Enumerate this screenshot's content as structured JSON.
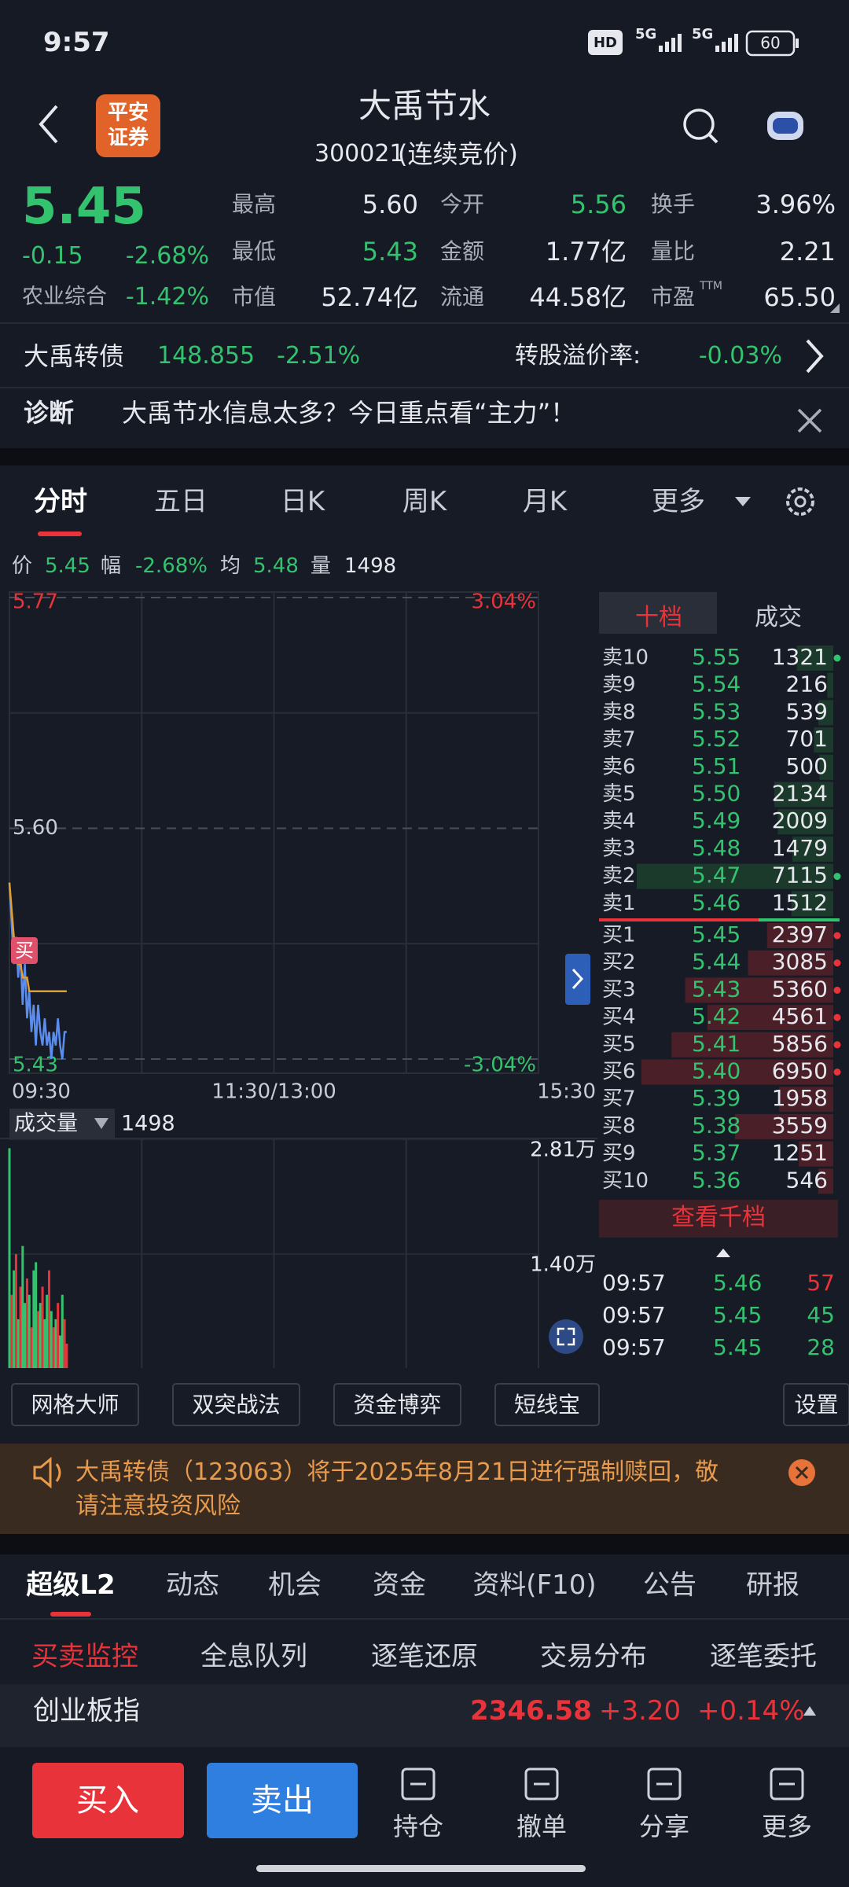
{
  "status": {
    "time": "9:57",
    "hd": "HD",
    "network": [
      "5G",
      "5G"
    ],
    "battery": "60"
  },
  "header": {
    "broker": [
      "平安",
      "证券"
    ],
    "title": "大禹节水",
    "code": "300021",
    "state": "(连续竞价)"
  },
  "quote": {
    "price": "5.45",
    "change": "-0.15",
    "change_pct": "-2.68%",
    "sector": "农业综合",
    "sector_pct": "-1.42%",
    "stats": [
      {
        "label": "最高",
        "value": "5.60"
      },
      {
        "label": "今开",
        "value": "5.56",
        "color": "#33c36f"
      },
      {
        "label": "换手",
        "value": "3.96%"
      },
      {
        "label": "最低",
        "value": "5.43",
        "color": "#33c36f"
      },
      {
        "label": "金额",
        "value": "1.77亿"
      },
      {
        "label": "量比",
        "value": "2.21"
      },
      {
        "label": "市值",
        "value": "52.74亿"
      },
      {
        "label": "流通",
        "value": "44.58亿"
      },
      {
        "label": "市盈",
        "sup": "TTM",
        "value": "65.50"
      }
    ]
  },
  "bond": {
    "name": "大禹转债",
    "price": "148.855",
    "change_pct": "-2.51%",
    "premium_label": "转股溢价率:",
    "premium": "-0.03%"
  },
  "diagnosis": {
    "label": "诊断",
    "text": "大禹节水信息太多？今日重点看“主力”！"
  },
  "period_tabs": [
    "分时",
    "五日",
    "日K",
    "周K",
    "月K",
    "更多"
  ],
  "info": [
    {
      "label": "价",
      "value": "5.45"
    },
    {
      "label": "幅",
      "value": "-2.68%"
    },
    {
      "label": "均",
      "value": "5.48"
    },
    {
      "label": "量",
      "value": "1498"
    }
  ],
  "chart_data": [
    {
      "type": "line",
      "x": [
        0,
        1,
        2,
        3,
        4,
        5,
        6,
        7,
        8,
        9,
        10,
        11,
        12,
        13,
        14,
        15,
        16,
        17,
        18,
        19,
        20,
        21,
        22,
        23,
        24,
        25,
        26
      ],
      "xlim": [
        0,
        240
      ],
      "xticks": [
        {
          "value": 0,
          "label": "09:30"
        },
        {
          "value": 120,
          "label": "11:30/13:00"
        },
        {
          "value": 240,
          "label": "15:30"
        }
      ],
      "ylim": [
        5.43,
        5.77
      ],
      "yticks": [
        5.43,
        {
          "value": 5.6,
          "label": "5.60"
        },
        5.77
      ],
      "y2lim": [
        -3.04,
        3.04
      ],
      "y2ticks": [
        {
          "value": -3.04,
          "label": "-3.04%"
        },
        {
          "value": 3.04,
          "label": "3.04%"
        }
      ],
      "annotation": "买",
      "series": [
        {
          "color": "#5b8def",
          "values": [
            5.56,
            5.53,
            5.5,
            5.52,
            5.49,
            5.51,
            5.47,
            5.5,
            5.46,
            5.48,
            5.45,
            5.47,
            5.44,
            5.47,
            5.45,
            5.44,
            5.46,
            5.44,
            5.45,
            5.43,
            5.45,
            5.44,
            5.46,
            5.44,
            5.43,
            5.45,
            5.45
          ]
        },
        {
          "color": "#e0a030",
          "values": [
            5.56,
            5.54,
            5.52,
            5.51,
            5.5,
            5.5,
            5.49,
            5.49,
            5.49,
            5.48,
            5.48,
            5.48,
            5.48,
            5.48,
            5.48,
            5.48,
            5.48,
            5.48,
            5.48,
            5.48,
            5.48,
            5.48,
            5.48,
            5.48,
            5.48,
            5.48,
            5.48
          ]
        }
      ]
    },
    {
      "type": "bar",
      "title": "成交量",
      "current": "1498",
      "x": [
        0,
        1,
        2,
        3,
        4,
        5,
        6,
        7,
        8,
        9,
        10,
        11,
        12,
        13,
        14,
        15,
        16,
        17,
        18,
        19,
        20,
        21,
        22,
        23,
        24,
        25,
        26
      ],
      "xlim": [
        0,
        240
      ],
      "ylim": [
        0,
        28100
      ],
      "yticks": [
        {
          "value": 14000,
          "label": "1.40万"
        },
        {
          "value": 28100,
          "label": "2.81万"
        }
      ],
      "values": [
        27000,
        9000,
        12000,
        14000,
        6000,
        10000,
        15000,
        8000,
        11000,
        9000,
        5000,
        12000,
        13000,
        7000,
        8000,
        10000,
        6000,
        9000,
        12000,
        7000,
        5000,
        6000,
        8000,
        4000,
        9000,
        6000,
        3000
      ],
      "colors": [
        "#33c36f",
        "#e8333a",
        "#33c36f",
        "#e8333a",
        "#33c36f",
        "#e8333a",
        "#33c36f",
        "#33c36f",
        "#e8333a",
        "#33c36f",
        "#e8333a",
        "#33c36f",
        "#33c36f",
        "#e8333a",
        "#33c36f",
        "#e8333a",
        "#33c36f",
        "#33c36f",
        "#e8333a",
        "#33c36f",
        "#e8333a",
        "#33c36f",
        "#e8333a",
        "#33c36f",
        "#33c36f",
        "#e8333a",
        "#e8333a"
      ]
    }
  ],
  "order_book": {
    "tabs": [
      "十档",
      "成交"
    ],
    "asks": [
      {
        "label": "卖10",
        "price": "5.55",
        "volume": 1321,
        "marked": true
      },
      {
        "label": "卖9",
        "price": "5.54",
        "volume": 216
      },
      {
        "label": "卖8",
        "price": "5.53",
        "volume": 539
      },
      {
        "label": "卖7",
        "price": "5.52",
        "volume": 701
      },
      {
        "label": "卖6",
        "price": "5.51",
        "volume": 500
      },
      {
        "label": "卖5",
        "price": "5.50",
        "volume": 2134
      },
      {
        "label": "卖4",
        "price": "5.49",
        "volume": 2009
      },
      {
        "label": "卖3",
        "price": "5.48",
        "volume": 1479
      },
      {
        "label": "卖2",
        "price": "5.47",
        "volume": 7115,
        "marked": true
      },
      {
        "label": "卖1",
        "price": "5.46",
        "volume": 1512
      }
    ],
    "bids": [
      {
        "label": "买1",
        "price": "5.45",
        "volume": 2397,
        "marked": true
      },
      {
        "label": "买2",
        "price": "5.44",
        "volume": 3085,
        "marked": true
      },
      {
        "label": "买3",
        "price": "5.43",
        "volume": 5360,
        "marked": true
      },
      {
        "label": "买4",
        "price": "5.42",
        "volume": 4561,
        "marked": true
      },
      {
        "label": "买5",
        "price": "5.41",
        "volume": 5856,
        "marked": true
      },
      {
        "label": "买6",
        "price": "5.40",
        "volume": 6950,
        "marked": true
      },
      {
        "label": "买7",
        "price": "5.39",
        "volume": 1958
      },
      {
        "label": "买8",
        "price": "5.38",
        "volume": 3559
      },
      {
        "label": "买9",
        "price": "5.37",
        "volume": 1251
      },
      {
        "label": "买10",
        "price": "5.36",
        "volume": 546
      }
    ],
    "more": "查看千档",
    "trades": [
      {
        "time": "09:57",
        "price": "5.46",
        "volume": 57,
        "color": "#e8333a"
      },
      {
        "time": "09:57",
        "price": "5.45",
        "volume": 45,
        "color": "#33c36f"
      },
      {
        "time": "09:57",
        "price": "5.45",
        "volume": 28,
        "color": "#33c36f"
      }
    ]
  },
  "tools": [
    "网格大师",
    "双突战法",
    "资金博弈",
    "短线宝",
    "设置"
  ],
  "notice": {
    "lines": [
      "大禹转债（123063）将于2025年8月21日进行强制赎回，敬",
      "请注意投资风险"
    ]
  },
  "section_tabs": [
    "超级L2",
    "动态",
    "机会",
    "资金",
    "资料(F10)",
    "公告",
    "研报"
  ],
  "sub_tabs": [
    "买卖监控",
    "全息队列",
    "逐笔还原",
    "交易分布",
    "逐笔委托"
  ],
  "index": {
    "name": "创业板指",
    "value": "2346.58",
    "change": "+3.20",
    "change_pct": "+0.14%"
  },
  "actions": {
    "buy": "买入",
    "sell": "卖出",
    "items": [
      "持仓",
      "撤单",
      "分享",
      "更多"
    ]
  }
}
